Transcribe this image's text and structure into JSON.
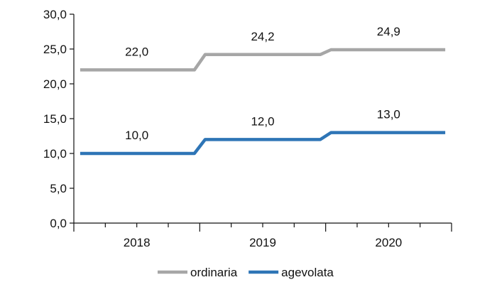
{
  "chart_data": {
    "type": "line",
    "title": "",
    "xlabel": "",
    "ylabel": "",
    "categories": [
      "2018",
      "2019",
      "2020"
    ],
    "ylim": [
      0,
      30
    ],
    "yticks": [
      "0,0",
      "5,0",
      "10,0",
      "15,0",
      "20,0",
      "25,0",
      "30,0"
    ],
    "grid": false,
    "legend_position": "bottom",
    "series": [
      {
        "name": "ordinaria",
        "color": "#a6a6a6",
        "values": [
          22.0,
          24.2,
          24.9
        ],
        "labels": [
          "22,0",
          "24,2",
          "24,9"
        ]
      },
      {
        "name": "agevolata",
        "color": "#2e75b6",
        "values": [
          10.0,
          12.0,
          13.0
        ],
        "labels": [
          "10,0",
          "12,0",
          "13,0"
        ]
      }
    ]
  }
}
